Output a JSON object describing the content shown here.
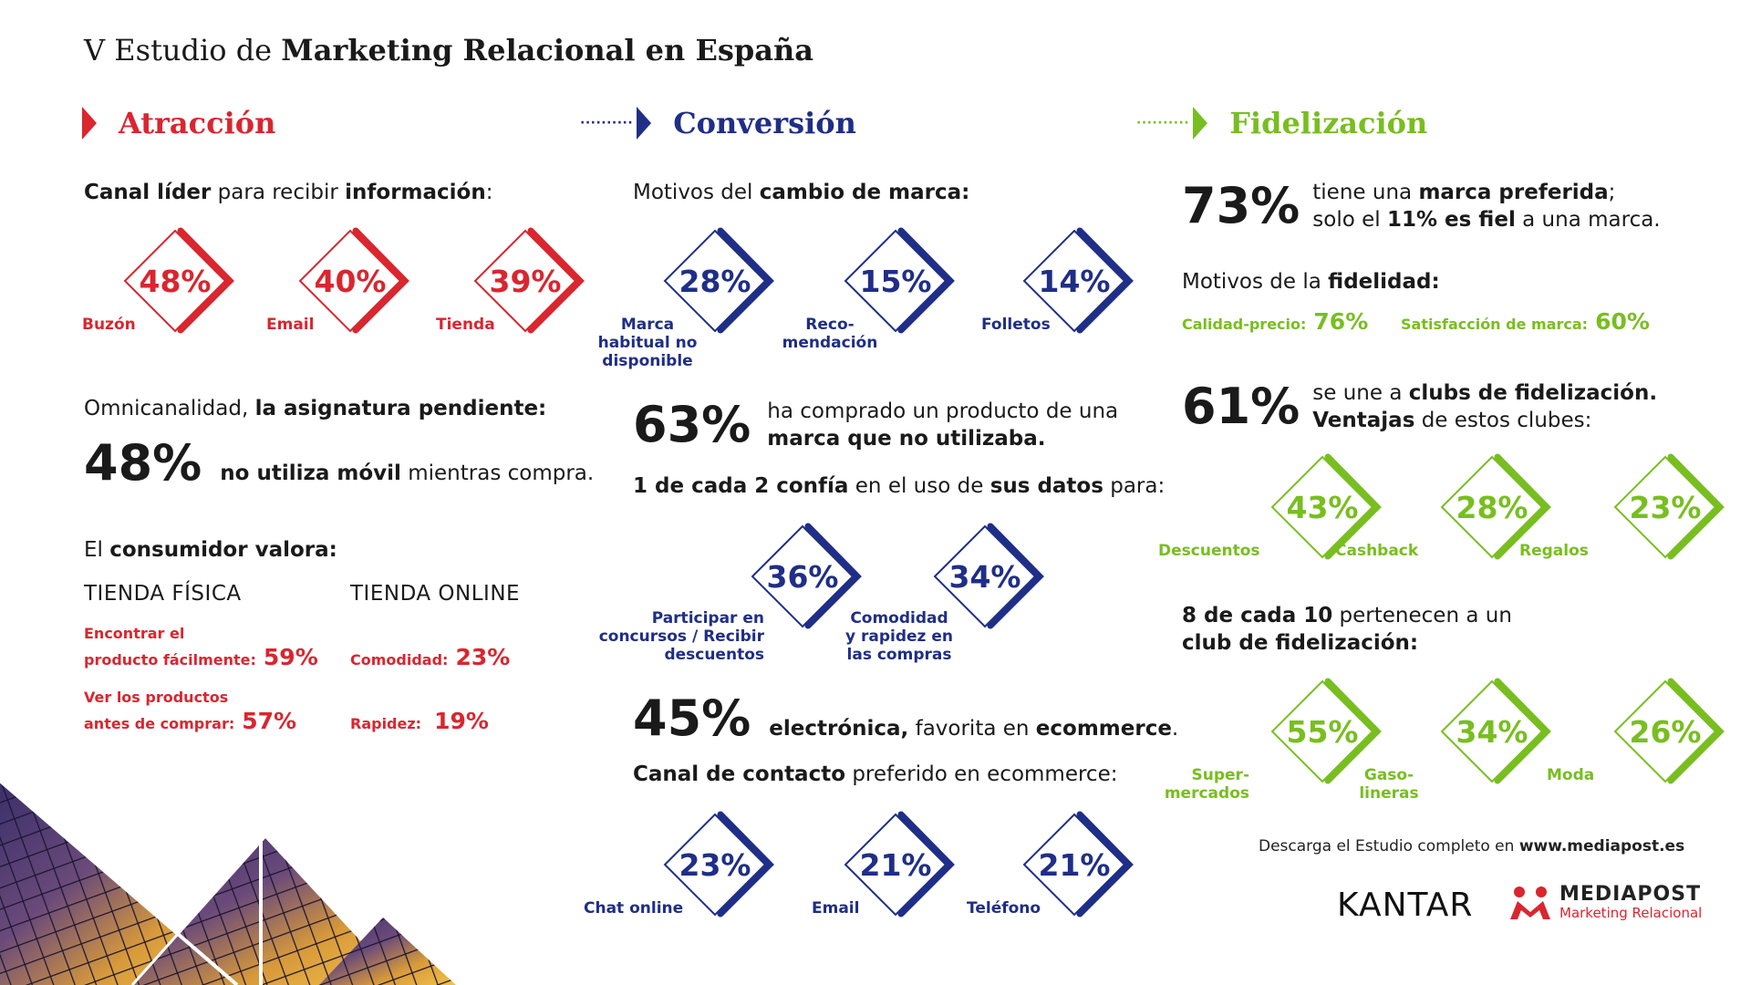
{
  "header": {
    "title_prefix": "V Estudio de ",
    "title_bold": "Marketing Relacional en España"
  },
  "colors": {
    "red": "#d9262f",
    "blue": "#1f2e87",
    "green": "#78be20"
  },
  "sections": {
    "attraction": {
      "label": "Atracción"
    },
    "conversion": {
      "label": "Conversión"
    },
    "loyalty": {
      "label": "Fidelización"
    }
  },
  "attraction": {
    "canal_heading": {
      "b1": "Canal líder",
      "t1": " para recibir ",
      "b2": "información",
      "t2": ":"
    },
    "channels": [
      {
        "pct": "48%",
        "label": "Buzón"
      },
      {
        "pct": "40%",
        "label": "Email"
      },
      {
        "pct": "39%",
        "label": "Tienda"
      }
    ],
    "omni_heading": {
      "t1": "Omnicanalidad, ",
      "b1": "la asignatura pendiente:"
    },
    "omni_stat": {
      "pct": "48%",
      "b1": "no utiliza móvil",
      "t1": " mientras compra."
    },
    "valora_heading": {
      "t1": "El ",
      "b1": "consumidor valora:"
    },
    "store_physical": {
      "title": "TIENDA FÍSICA",
      "items": [
        {
          "line1": "Encontrar el",
          "line2": "producto fácilmente:",
          "pct": "59%"
        },
        {
          "line1": "Ver los productos",
          "line2": "antes de comprar:",
          "pct": "57%"
        }
      ]
    },
    "store_online": {
      "title": "TIENDA ONLINE",
      "items": [
        {
          "label": "Comodidad:",
          "pct": "23%"
        },
        {
          "label": "Rapidez:",
          "pct": "19%"
        }
      ]
    }
  },
  "conversion": {
    "motivos_heading": {
      "t1": "Motivos del ",
      "b1": "cambio de marca:"
    },
    "motivos": [
      {
        "pct": "28%",
        "l1": "Marca",
        "l2": "habitual no",
        "l3": "disponible"
      },
      {
        "pct": "15%",
        "l1": "Reco-",
        "l2": "mendación",
        "l3": ""
      },
      {
        "pct": "14%",
        "l1": "Folletos",
        "l2": "",
        "l3": ""
      }
    ],
    "stat63": {
      "pct": "63%",
      "l1": "ha comprado un producto de una",
      "l2": "marca que no utilizaba."
    },
    "datos_heading": {
      "b1": "1 de cada 2 confía",
      "t1": " en el uso de ",
      "b2": "sus datos",
      "t2": " para:"
    },
    "datos": [
      {
        "pct": "36%",
        "l1": "Participar en",
        "l2": "concursos / Recibir",
        "l3": "descuentos"
      },
      {
        "pct": "34%",
        "l1": "Comodidad",
        "l2": "y rapidez en",
        "l3": "las compras"
      }
    ],
    "stat45": {
      "pct": "45%",
      "b1": "electrónica,",
      "t1": " favorita en ",
      "b2": "ecommerce",
      "t2": "."
    },
    "contacto_heading": {
      "b1": "Canal de contacto",
      "t1": " preferido en ecommerce:"
    },
    "contacto": [
      {
        "pct": "23%",
        "label": "Chat online"
      },
      {
        "pct": "21%",
        "label": "Email"
      },
      {
        "pct": "21%",
        "label": "Teléfono"
      }
    ]
  },
  "loyalty": {
    "stat73": {
      "pct": "73%",
      "l1a": "tiene una ",
      "l1b": "marca preferida",
      "l1c": ";",
      "l2a": "solo el ",
      "l2b": "11% es fiel",
      "l2c": " a una marca."
    },
    "fidelidad_heading": {
      "t1": "Motivos de la ",
      "b1": "fidelidad:"
    },
    "fidelidad": [
      {
        "label": "Calidad-precio:",
        "pct": "76%"
      },
      {
        "label": "Satisfacción de marca:",
        "pct": "60%"
      }
    ],
    "stat61": {
      "pct": "61%",
      "l1a": "se une a ",
      "l1b": "clubs de fidelización.",
      "l2a": "Ventajas",
      "l2b": " de estos clubes:"
    },
    "ventajas": [
      {
        "pct": "43%",
        "l1": "Descuentos",
        "l2": ""
      },
      {
        "pct": "28%",
        "l1": "Cashback",
        "l2": ""
      },
      {
        "pct": "23%",
        "l1": "Regalos",
        "l2": ""
      }
    ],
    "club_heading": {
      "b1": "8 de cada 10",
      "t1": " pertenecen a un",
      "b2": "club de fidelización:"
    },
    "clubs": [
      {
        "pct": "55%",
        "l1": "Super-",
        "l2": "mercados"
      },
      {
        "pct": "34%",
        "l1": "Gaso-",
        "l2": "lineras"
      },
      {
        "pct": "26%",
        "l1": "Moda",
        "l2": ""
      }
    ]
  },
  "footer": {
    "download_text": "Descarga el Estudio completo en ",
    "download_url": "www.mediapost.es",
    "kantar": "KANTAR",
    "mediapost_name": "MEDIAPOST",
    "mediapost_sub": "Marketing Relacional"
  }
}
